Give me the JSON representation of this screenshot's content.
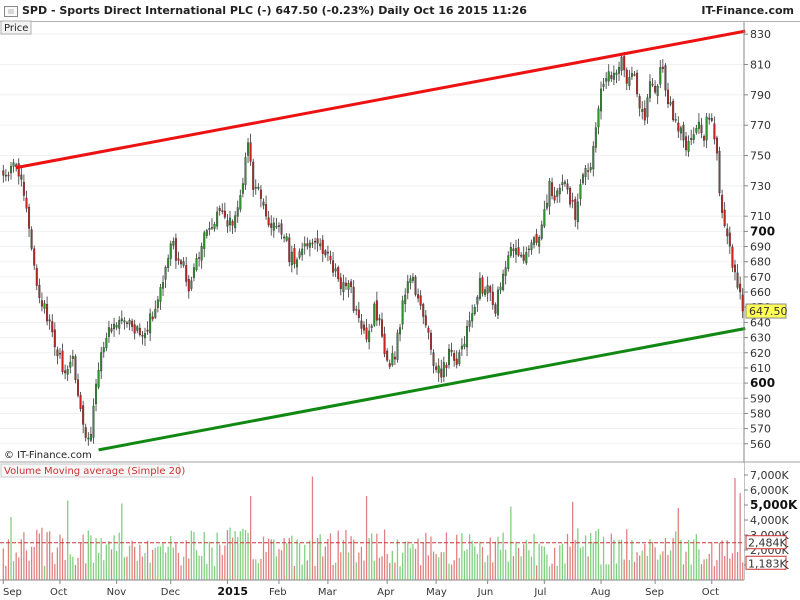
{
  "header": {
    "title": "SPD - Sports Direct International PLC (-)     647.50 (-0.23%)     Daily  Oct 16 2015 11:26",
    "brand": "IT-Finance.com"
  },
  "price_panel": {
    "label": "Price",
    "copyright": "© IT-Finance.com",
    "last_price_label": "647.50"
  },
  "volume_panel": {
    "label_volume": "Volume",
    "label_ma": "Moving average (Simple 20)",
    "ma_value_label": "2,484K",
    "last_volume_label": "1,183K"
  },
  "colors": {
    "up": "#2e9a2e",
    "down": "#cc2222",
    "resistance": "#ee1111",
    "support": "#118811",
    "price_tag": "#ffff55",
    "volume_up": "#7fcf7f",
    "volume_down": "#e07f7f"
  },
  "chart_data": {
    "type": "candlestick",
    "price_axis": {
      "range": [
        548,
        838
      ],
      "ticks": [
        560,
        570,
        580,
        590,
        600,
        610,
        620,
        630,
        640,
        650,
        660,
        670,
        680,
        690,
        700,
        710,
        730,
        750,
        770,
        790,
        810,
        830
      ],
      "bold_ticks": [
        600,
        700
      ]
    },
    "volume_axis": {
      "range": [
        0,
        7600
      ],
      "ticks": [
        {
          "v": 1000,
          "label": "1,000K"
        },
        {
          "v": 2000,
          "label": "2,000K"
        },
        {
          "v": 3000,
          "label": "3,000K"
        },
        {
          "v": 4000,
          "label": "4,000K"
        },
        {
          "v": 5000,
          "label": "5,000K",
          "bold": true
        },
        {
          "v": 6000,
          "label": "6,000K"
        },
        {
          "v": 7000,
          "label": "7,000K"
        }
      ]
    },
    "x_labels": [
      {
        "label": "Sep",
        "day": 0
      },
      {
        "label": "Oct",
        "day": 22
      },
      {
        "label": "Nov",
        "day": 44
      },
      {
        "label": "Dec",
        "day": 65
      },
      {
        "label": "2015",
        "day": 87,
        "bold": true
      },
      {
        "label": "Feb",
        "day": 107
      },
      {
        "label": "Mar",
        "day": 126
      },
      {
        "label": "Apr",
        "day": 149
      },
      {
        "label": "May",
        "day": 168
      },
      {
        "label": "Jun",
        "day": 188
      },
      {
        "label": "Jul",
        "day": 210
      },
      {
        "label": "Aug",
        "day": 232
      },
      {
        "label": "Sep",
        "day": 253
      },
      {
        "label": "Oct",
        "day": 275
      }
    ],
    "close_anchors": [
      [
        0,
        737
      ],
      [
        5,
        742
      ],
      [
        8,
        727
      ],
      [
        10,
        700
      ],
      [
        13,
        665
      ],
      [
        17,
        645
      ],
      [
        20,
        628
      ],
      [
        24,
        605
      ],
      [
        27,
        618
      ],
      [
        30,
        583
      ],
      [
        32,
        565
      ],
      [
        34,
        568
      ],
      [
        36,
        600
      ],
      [
        38,
        622
      ],
      [
        41,
        635
      ],
      [
        44,
        640
      ],
      [
        47,
        645
      ],
      [
        50,
        640
      ],
      [
        53,
        630
      ],
      [
        56,
        638
      ],
      [
        59,
        648
      ],
      [
        62,
        668
      ],
      [
        65,
        695
      ],
      [
        67,
        685
      ],
      [
        70,
        676
      ],
      [
        72,
        660
      ],
      [
        74,
        672
      ],
      [
        78,
        700
      ],
      [
        81,
        702
      ],
      [
        84,
        717
      ],
      [
        87,
        705
      ],
      [
        89,
        705
      ],
      [
        91,
        714
      ],
      [
        93,
        735
      ],
      [
        95,
        762
      ],
      [
        97,
        730
      ],
      [
        100,
        722
      ],
      [
        103,
        706
      ],
      [
        106,
        702
      ],
      [
        109,
        700
      ],
      [
        111,
        684
      ],
      [
        114,
        681
      ],
      [
        117,
        690
      ],
      [
        120,
        695
      ],
      [
        123,
        690
      ],
      [
        125,
        685
      ],
      [
        128,
        675
      ],
      [
        131,
        663
      ],
      [
        134,
        668
      ],
      [
        136,
        652
      ],
      [
        138,
        642
      ],
      [
        141,
        628
      ],
      [
        144,
        648
      ],
      [
        147,
        632
      ],
      [
        149,
        612
      ],
      [
        152,
        620
      ],
      [
        155,
        650
      ],
      [
        158,
        672
      ],
      [
        161,
        658
      ],
      [
        163,
        648
      ],
      [
        166,
        620
      ],
      [
        168,
        612
      ],
      [
        170,
        605
      ],
      [
        173,
        618
      ],
      [
        176,
        615
      ],
      [
        179,
        630
      ],
      [
        182,
        645
      ],
      [
        185,
        665
      ],
      [
        188,
        660
      ],
      [
        191,
        650
      ],
      [
        193,
        665
      ],
      [
        196,
        682
      ],
      [
        199,
        693
      ],
      [
        202,
        680
      ],
      [
        205,
        690
      ],
      [
        207,
        695
      ],
      [
        209,
        704
      ],
      [
        212,
        730
      ],
      [
        214,
        720
      ],
      [
        217,
        735
      ],
      [
        220,
        720
      ],
      [
        222,
        712
      ],
      [
        225,
        738
      ],
      [
        228,
        742
      ],
      [
        230,
        770
      ],
      [
        232,
        790
      ],
      [
        235,
        802
      ],
      [
        238,
        808
      ],
      [
        240,
        815
      ],
      [
        242,
        797
      ],
      [
        245,
        805
      ],
      [
        247,
        782
      ],
      [
        249,
        777
      ],
      [
        251,
        798
      ],
      [
        253,
        795
      ],
      [
        256,
        808
      ],
      [
        258,
        786
      ],
      [
        260,
        776
      ],
      [
        262,
        770
      ],
      [
        265,
        755
      ],
      [
        267,
        760
      ],
      [
        270,
        772
      ],
      [
        272,
        762
      ],
      [
        273,
        775
      ],
      [
        275,
        770
      ],
      [
        277,
        750
      ],
      [
        279,
        708
      ],
      [
        281,
        694
      ],
      [
        283,
        680
      ],
      [
        285,
        664
      ],
      [
        287,
        647.5
      ]
    ],
    "volume_spikes": [
      [
        3,
        4200
      ],
      [
        25,
        5300
      ],
      [
        46,
        5100
      ],
      [
        96,
        5600
      ],
      [
        120,
        6900
      ],
      [
        141,
        5600
      ],
      [
        197,
        4900
      ],
      [
        221,
        5200
      ],
      [
        262,
        4800
      ],
      [
        284,
        6800
      ],
      [
        286,
        5800
      ]
    ],
    "day_count": 288,
    "volume_ma_level": 2484,
    "last_volume": 1183,
    "trendlines": [
      {
        "name": "resistance",
        "from": {
          "day": 5,
          "price": 742
        },
        "to": {
          "day": 288,
          "price": 832
        }
      },
      {
        "name": "support",
        "from": {
          "day": 37,
          "price": 556
        },
        "to": {
          "day": 288,
          "price": 636
        }
      }
    ]
  }
}
